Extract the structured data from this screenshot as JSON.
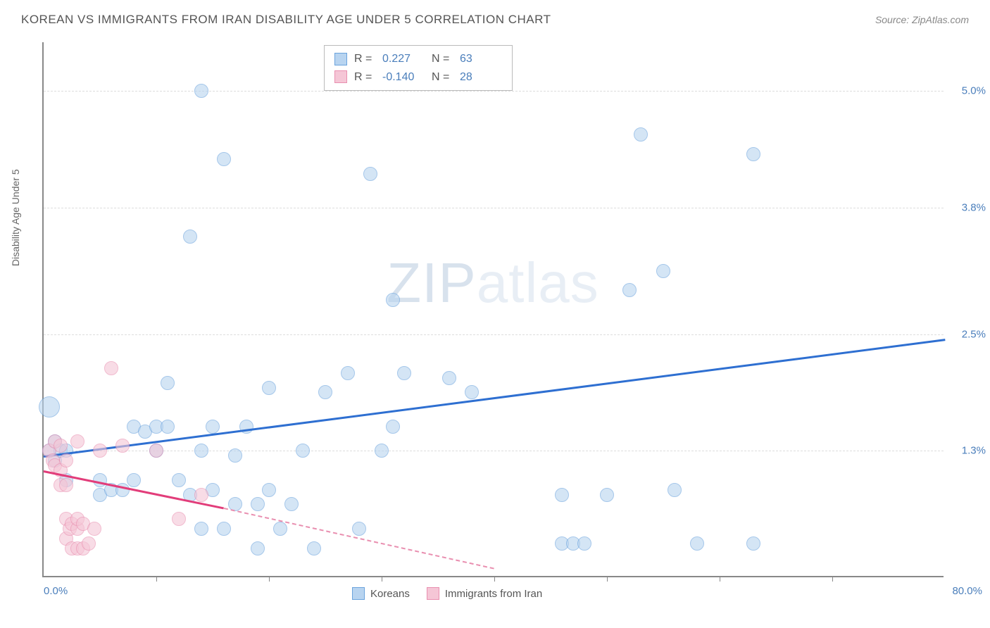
{
  "title": "KOREAN VS IMMIGRANTS FROM IRAN DISABILITY AGE UNDER 5 CORRELATION CHART",
  "source": "Source: ZipAtlas.com",
  "watermark_a": "ZIP",
  "watermark_b": "atlas",
  "chart": {
    "type": "scatter",
    "background_color": "#ffffff",
    "grid_color": "#dddddd",
    "axis_color": "#888888",
    "y_label": "Disability Age Under 5",
    "label_fontsize": 14,
    "tick_fontsize": 15,
    "tick_color": "#4a7ebb",
    "xlim": [
      0,
      80
    ],
    "ylim": [
      0,
      5.5
    ],
    "x_tick_positions": [
      10,
      20,
      30,
      40,
      50,
      60,
      70
    ],
    "y_ticks": [
      {
        "v": 1.3,
        "label": "1.3%"
      },
      {
        "v": 2.5,
        "label": "2.5%"
      },
      {
        "v": 3.8,
        "label": "3.8%"
      },
      {
        "v": 5.0,
        "label": "5.0%"
      }
    ],
    "x_label_min": "0.0%",
    "x_label_max": "80.0%",
    "series": [
      {
        "name": "Koreans",
        "color_fill": "#b8d4f0",
        "color_stroke": "#6ba3dd",
        "trend_color": "#2e6fd1",
        "marker_radius": 10,
        "fill_opacity": 0.6,
        "R": "0.227",
        "N": "63",
        "trend": {
          "x1": 0,
          "y1": 1.25,
          "x2": 80,
          "y2": 2.45,
          "dashed": false
        },
        "points": [
          [
            0.5,
            1.75,
            15
          ],
          [
            0.5,
            1.3
          ],
          [
            1,
            1.2
          ],
          [
            1,
            1.4
          ],
          [
            1.5,
            1.3
          ],
          [
            2,
            1.3
          ],
          [
            2,
            1.0
          ],
          [
            5,
            0.85
          ],
          [
            5,
            1.0
          ],
          [
            6,
            0.9
          ],
          [
            7,
            0.9
          ],
          [
            8,
            1.0
          ],
          [
            8,
            1.55
          ],
          [
            9,
            1.5
          ],
          [
            10,
            1.3
          ],
          [
            10,
            1.55
          ],
          [
            11,
            2.0
          ],
          [
            11,
            1.55
          ],
          [
            12,
            1.0
          ],
          [
            13,
            0.85
          ],
          [
            13,
            3.5
          ],
          [
            14,
            0.5
          ],
          [
            14,
            1.3
          ],
          [
            14,
            5.0
          ],
          [
            15,
            0.9
          ],
          [
            15,
            1.55
          ],
          [
            16,
            0.5
          ],
          [
            16,
            4.3
          ],
          [
            17,
            0.75
          ],
          [
            17,
            1.25
          ],
          [
            18,
            1.55
          ],
          [
            19,
            0.3
          ],
          [
            19,
            0.75
          ],
          [
            20,
            0.9
          ],
          [
            20,
            1.95
          ],
          [
            21,
            0.5
          ],
          [
            22,
            0.75
          ],
          [
            23,
            1.3
          ],
          [
            24,
            0.3
          ],
          [
            25,
            1.9
          ],
          [
            27,
            2.1
          ],
          [
            28,
            0.5
          ],
          [
            29,
            4.15
          ],
          [
            30,
            1.3
          ],
          [
            31,
            1.55
          ],
          [
            31,
            2.85
          ],
          [
            32,
            2.1
          ],
          [
            36,
            2.05
          ],
          [
            38,
            1.9
          ],
          [
            46,
            0.35
          ],
          [
            46,
            0.85
          ],
          [
            47,
            0.35
          ],
          [
            48,
            0.35
          ],
          [
            50,
            0.85
          ],
          [
            52,
            2.95
          ],
          [
            53,
            4.55
          ],
          [
            55,
            3.15
          ],
          [
            56,
            0.9
          ],
          [
            58,
            0.35
          ],
          [
            63,
            4.35
          ],
          [
            63,
            0.35
          ]
        ]
      },
      {
        "name": "Immigrants from Iran",
        "color_fill": "#f5c6d6",
        "color_stroke": "#e98fb0",
        "trend_color": "#e23d7a",
        "marker_radius": 10,
        "fill_opacity": 0.6,
        "R": "-0.140",
        "N": "28",
        "trend": {
          "x1": 0,
          "y1": 1.1,
          "x2": 16,
          "y2": 0.72,
          "dashed": false
        },
        "trend_ext": {
          "x1": 16,
          "y1": 0.72,
          "x2": 40,
          "y2": 0.1,
          "dashed": true
        },
        "points": [
          [
            0.5,
            1.3
          ],
          [
            0.8,
            1.2
          ],
          [
            1,
            1.4
          ],
          [
            1,
            1.15
          ],
          [
            1.5,
            1.35
          ],
          [
            1.5,
            1.1
          ],
          [
            1.5,
            0.95
          ],
          [
            2,
            1.2
          ],
          [
            2,
            0.95
          ],
          [
            2,
            0.6
          ],
          [
            2,
            0.4
          ],
          [
            2.3,
            0.5
          ],
          [
            2.5,
            0.3
          ],
          [
            2.5,
            0.55
          ],
          [
            3,
            0.3
          ],
          [
            3,
            0.5
          ],
          [
            3,
            0.6
          ],
          [
            3,
            1.4
          ],
          [
            3.5,
            0.3
          ],
          [
            3.5,
            0.55
          ],
          [
            4,
            0.35
          ],
          [
            4.5,
            0.5
          ],
          [
            5,
            1.3
          ],
          [
            6,
            2.15
          ],
          [
            7,
            1.35
          ],
          [
            10,
            1.3
          ],
          [
            12,
            0.6
          ],
          [
            14,
            0.85
          ]
        ]
      }
    ]
  }
}
